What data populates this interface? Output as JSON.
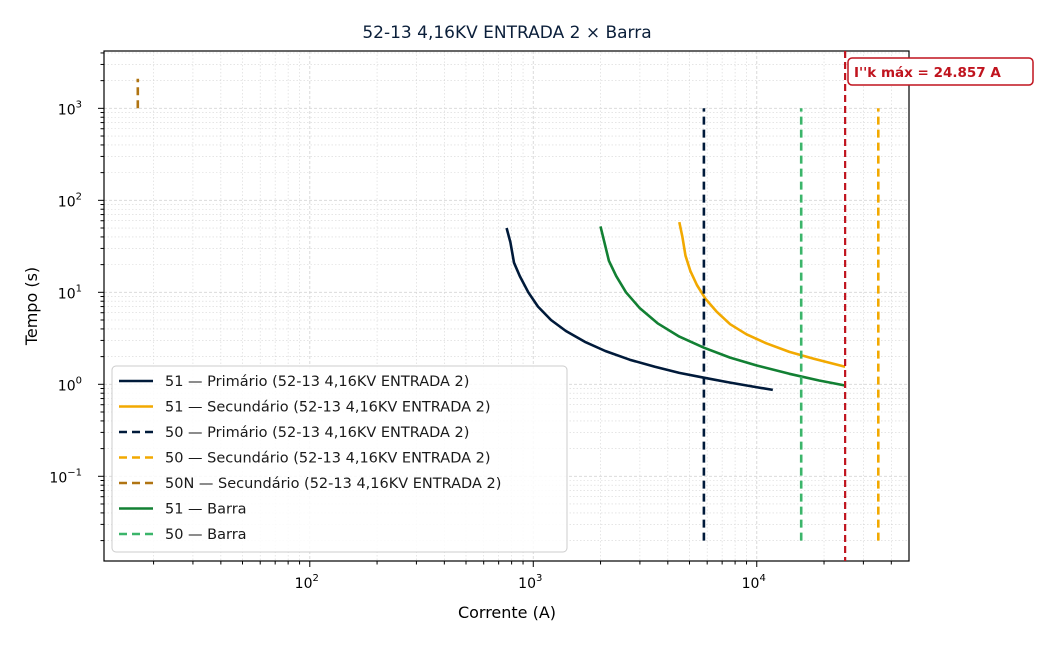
{
  "chart_data": {
    "type": "line",
    "title": "52-13 4,16KV ENTRADA 2 × Barra",
    "xlabel": "Corrente (A)",
    "ylabel": "Tempo (s)",
    "xscale": "log",
    "yscale": "log",
    "xlim": [
      12,
      48000
    ],
    "ylim": [
      0.012,
      4200
    ],
    "grid": true,
    "legend_position": "lower-left",
    "x_ticks": [
      {
        "value": 100,
        "base": "10",
        "exp": "2"
      },
      {
        "value": 1000,
        "base": "10",
        "exp": "3"
      },
      {
        "value": 10000,
        "base": "10",
        "exp": "4"
      }
    ],
    "y_ticks": [
      {
        "value": 0.1,
        "base": "10",
        "exp": "−1"
      },
      {
        "value": 1,
        "base": "10",
        "exp": "0"
      },
      {
        "value": 10,
        "base": "10",
        "exp": "1"
      },
      {
        "value": 100,
        "base": "10",
        "exp": "2"
      },
      {
        "value": 1000,
        "base": "10",
        "exp": "3"
      }
    ],
    "series": [
      {
        "name": "51 — Primário (52-13 4,16KV ENTRADA 2)",
        "color": "#001a3a",
        "dash": "solid",
        "x": [
          760,
          790,
          820,
          870,
          950,
          1050,
          1200,
          1400,
          1700,
          2100,
          2700,
          3500,
          4500,
          5800,
          7500,
          9500,
          11800
        ],
        "y": [
          50,
          35,
          21,
          15,
          10,
          7,
          5,
          3.8,
          2.9,
          2.3,
          1.85,
          1.55,
          1.33,
          1.18,
          1.05,
          0.95,
          0.87
        ]
      },
      {
        "name": "51 — Secundário (52-13 4,16KV ENTRADA 2)",
        "color": "#f2a900",
        "dash": "solid",
        "x": [
          4500,
          4650,
          4800,
          5050,
          5400,
          5900,
          6600,
          7600,
          9000,
          11000,
          14000,
          18000,
          24857
        ],
        "y": [
          58,
          40,
          25,
          17,
          12,
          8.5,
          6.2,
          4.5,
          3.5,
          2.8,
          2.25,
          1.9,
          1.55
        ]
      },
      {
        "name": "50 — Primário (52-13 4,16KV ENTRADA 2)",
        "color": "#001a3a",
        "dash": "dashed",
        "x": [
          5800,
          5800
        ],
        "y": [
          0.02,
          1000
        ]
      },
      {
        "name": "50 — Secundário (52-13 4,16KV ENTRADA 2)",
        "color": "#f2a900",
        "dash": "dashed",
        "x": [
          35000,
          35000
        ],
        "y": [
          0.02,
          1000
        ]
      },
      {
        "name": "50N — Secundário (52-13 4,16KV ENTRADA 2)",
        "color": "#b07412",
        "dash": "dashed",
        "x": [
          17,
          17
        ],
        "y": [
          1000,
          2100
        ]
      },
      {
        "name": "51 — Barra",
        "color": "#128033",
        "dash": "solid",
        "x": [
          2000,
          2080,
          2180,
          2350,
          2600,
          3000,
          3600,
          4500,
          5800,
          7600,
          10000,
          14000,
          19000,
          24857
        ],
        "y": [
          52,
          35,
          22,
          15,
          10,
          6.7,
          4.6,
          3.3,
          2.5,
          1.95,
          1.6,
          1.3,
          1.1,
          0.97
        ]
      },
      {
        "name": "50 — Barra",
        "color": "#3bb56a",
        "dash": "dashed",
        "x": [
          15800,
          15800
        ],
        "y": [
          0.02,
          1000
        ]
      }
    ],
    "annotation": {
      "label": "I''k máx = 24.857 A",
      "x": 24857,
      "color": "#c0141e"
    }
  }
}
